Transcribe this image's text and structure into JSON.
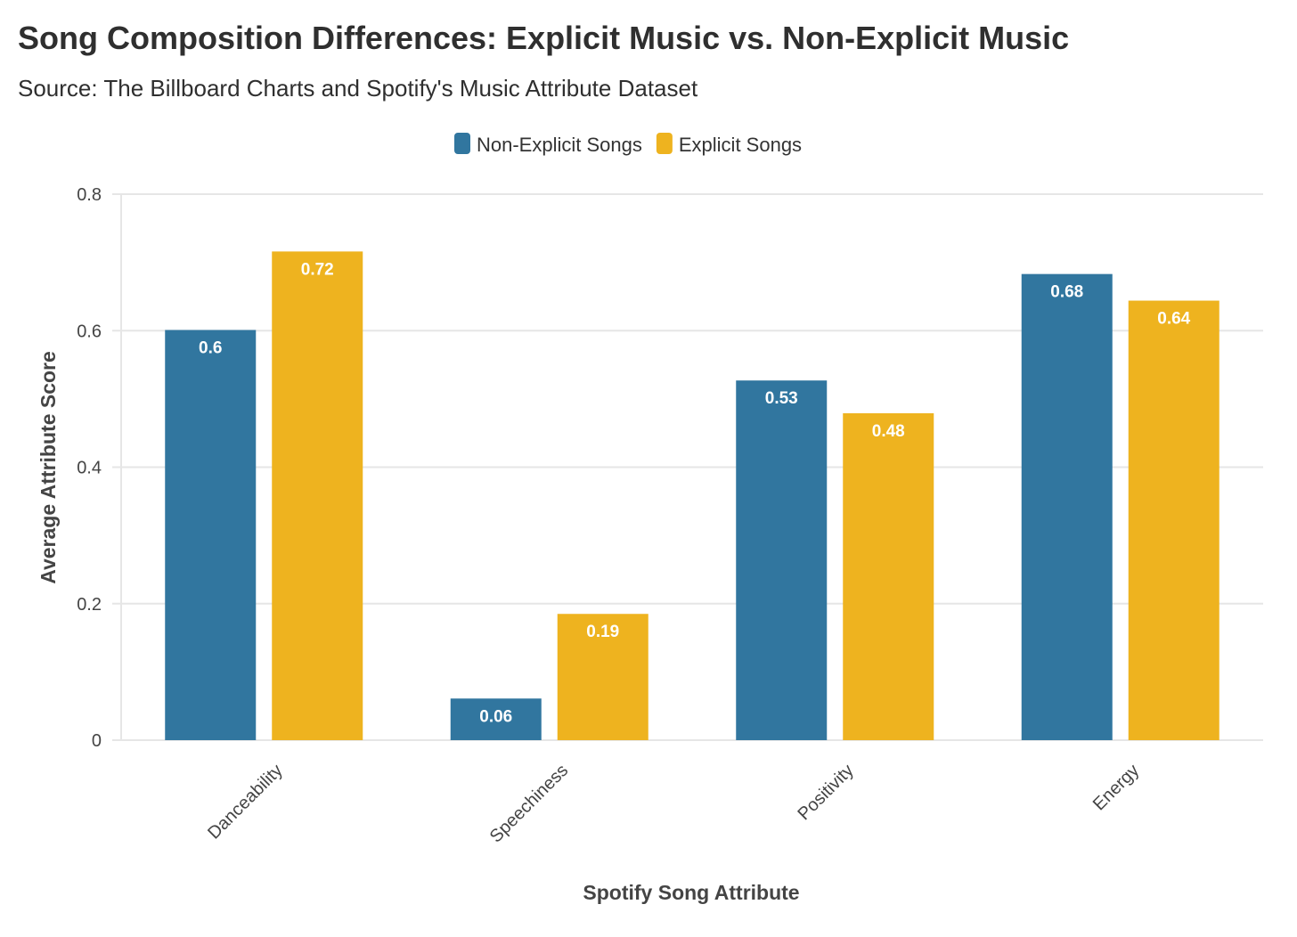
{
  "title": "Song Composition Differences: Explicit Music vs. Non-Explicit Music",
  "subtitle": "Source: The Billboard Charts and Spotify's Music Attribute Dataset",
  "colors": {
    "non_explicit": "#31769f",
    "explicit": "#eeb31f",
    "grid": "#e6e6e6"
  },
  "chart_data": {
    "type": "bar",
    "categories": [
      "Danceability",
      "Speechiness",
      "Positivity",
      "Energy"
    ],
    "series": [
      {
        "name": "Non-Explicit Songs",
        "values": [
          0.601,
          0.061,
          0.527,
          0.683
        ],
        "labels": [
          "0.6",
          "0.06",
          "0.53",
          "0.68"
        ]
      },
      {
        "name": "Explicit Songs",
        "values": [
          0.716,
          0.185,
          0.479,
          0.644
        ],
        "labels": [
          "0.72",
          "0.19",
          "0.48",
          "0.64"
        ]
      }
    ],
    "xlabel": "Spotify Song Attribute",
    "ylabel": "Average Attribute Score",
    "ylim": [
      0,
      0.8
    ],
    "yticks": [
      0,
      0.2,
      0.4,
      0.6,
      0.8
    ],
    "ytick_labels": [
      "0",
      "0.2",
      "0.4",
      "0.6",
      "0.8"
    ],
    "legend_position": "top-center",
    "grid": true
  }
}
